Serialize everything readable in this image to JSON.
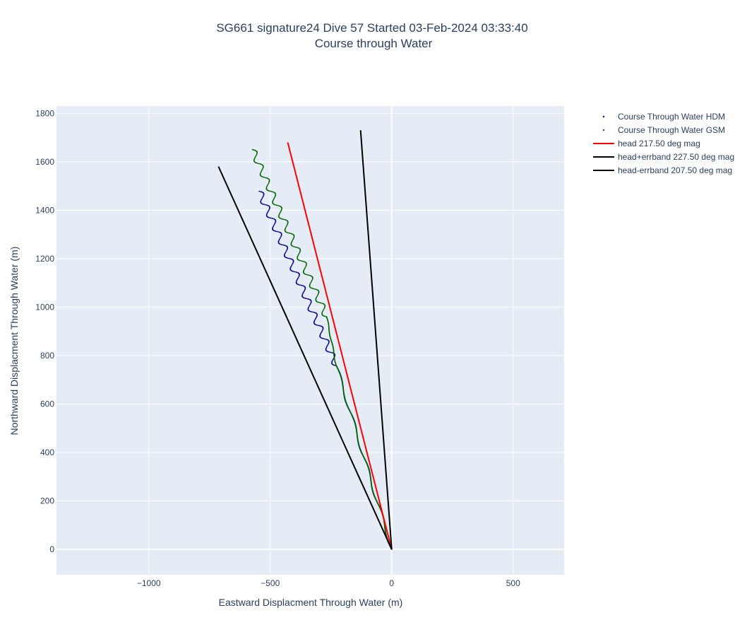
{
  "chart_data": {
    "type": "line",
    "title_line1": "SG661 signature24 Dive 57 Started 03-Feb-2024 03:33:40",
    "title_line2": "Course through Water",
    "xlabel": "Eastward Displacment Through Water (m)",
    "ylabel": "Northward Displacment Through Water (m)",
    "xlim": [
      -1380,
      710
    ],
    "ylim": [
      -105,
      1830
    ],
    "xticks": [
      -1000,
      -500,
      0,
      500
    ],
    "xtick_labels": [
      "−1000",
      "−500",
      "0",
      "500"
    ],
    "yticks": [
      0,
      200,
      400,
      600,
      800,
      1000,
      1200,
      1400,
      1600,
      1800
    ],
    "ytick_labels": [
      "0",
      "200",
      "400",
      "600",
      "800",
      "1000",
      "1200",
      "1400",
      "1600",
      "1800"
    ],
    "grid": true,
    "legend_position": "top-right, outside plot",
    "series": [
      {
        "name": "Course Through Water HDM",
        "mode": "markers",
        "color": "#00008b",
        "segments": [
          {
            "start": [
              0,
              0
            ],
            "end": [
              -228,
              758
            ],
            "amp": 6,
            "waves": 4
          },
          {
            "start": [
              -228,
              758
            ],
            "end": [
              -545,
              1478
            ],
            "amp": 13,
            "waves": 13
          }
        ]
      },
      {
        "name": "Course Through Water GSM",
        "mode": "markers",
        "color": "#006400",
        "segments": [
          {
            "start": [
              0,
              0
            ],
            "end": [
              -228,
              758
            ],
            "amp": 5,
            "waves": 4
          },
          {
            "start": [
              -228,
              758
            ],
            "end": [
              -268,
              960
            ],
            "amp": 2,
            "waves": 2
          },
          {
            "start": [
              -268,
              960
            ],
            "end": [
              -573,
              1650
            ],
            "amp": 13,
            "waves": 12
          }
        ]
      },
      {
        "name": "head 217.50 deg mag",
        "mode": "lines",
        "color": "#ff0000",
        "x": [
          0,
          -428
        ],
        "y": [
          0,
          1680
        ]
      },
      {
        "name": "head+errband 227.50 deg mag",
        "mode": "lines",
        "color": "#000000",
        "x": [
          0,
          -713
        ],
        "y": [
          0,
          1580
        ]
      },
      {
        "name": "head-errband 207.50 deg mag",
        "mode": "lines",
        "color": "#000000",
        "x": [
          0,
          -128
        ],
        "y": [
          0,
          1730
        ]
      }
    ]
  },
  "colors": {
    "plot_bg": "#e5ecf6",
    "grid": "#ffffff",
    "text": "#2a3f5f"
  }
}
